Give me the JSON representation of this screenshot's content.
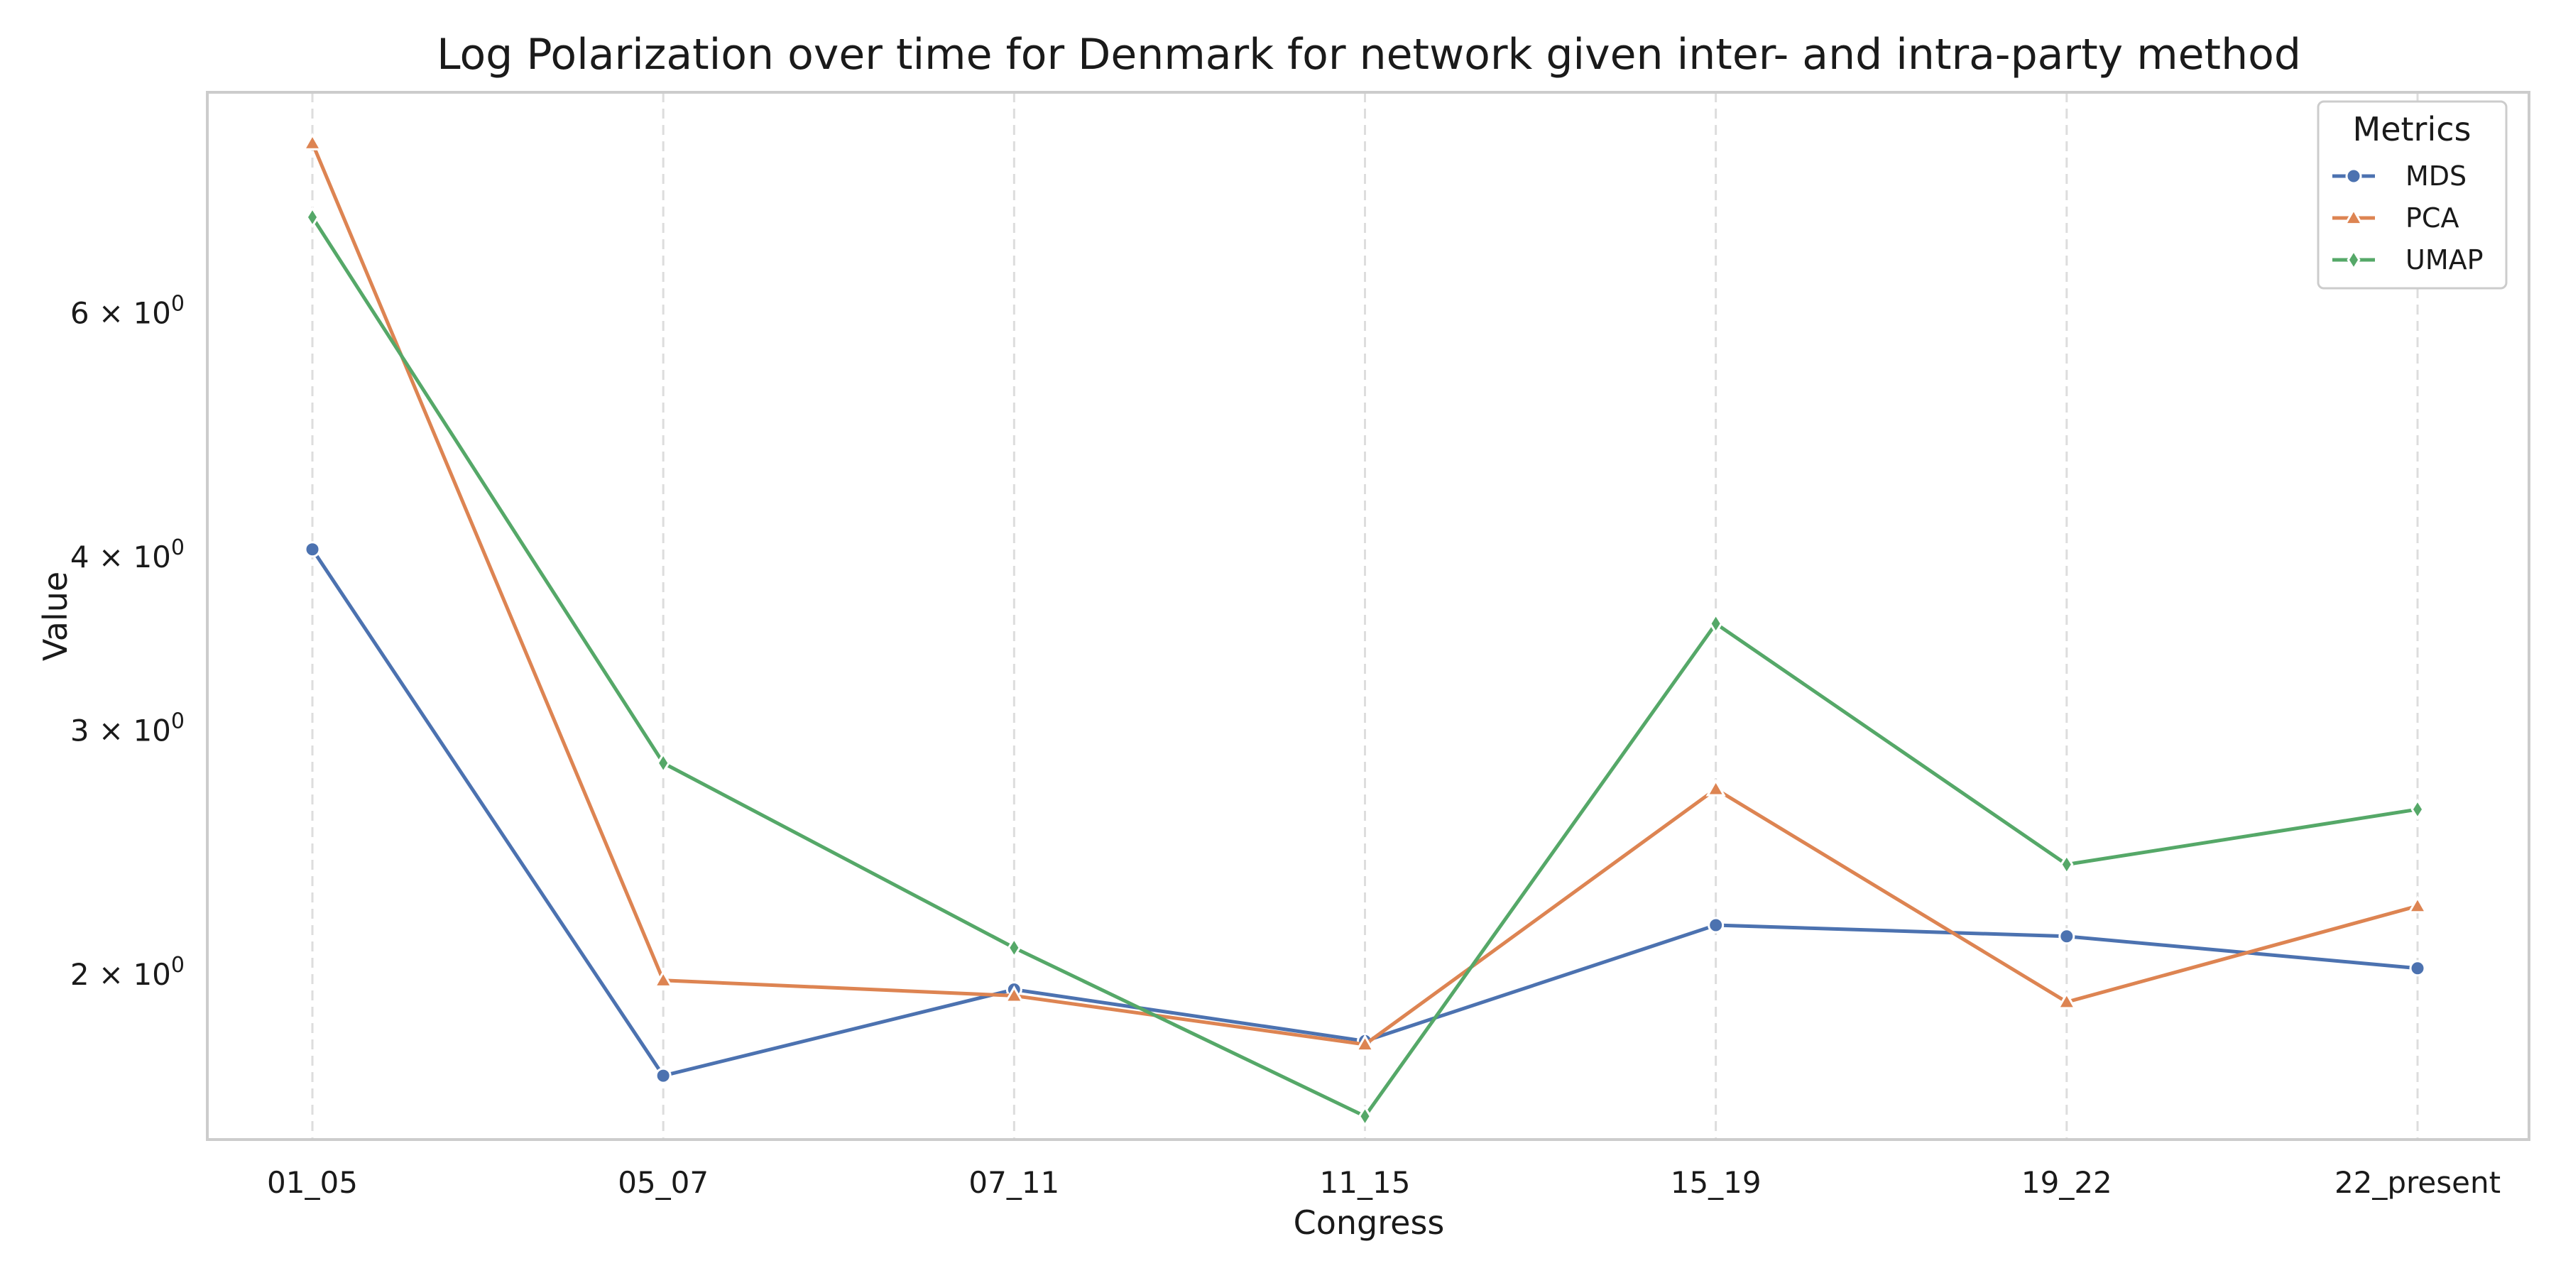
{
  "chart_data": {
    "type": "line",
    "title": "Log Polarization over time for Denmark for network given inter- and intra-party method",
    "xlabel": "Congress",
    "ylabel": "Value",
    "y_scale": "log",
    "grid": "vertical dashed",
    "categories": [
      "01_05",
      "05_07",
      "07_11",
      "11_15",
      "15_19",
      "19_22",
      "22_present"
    ],
    "yticks": [
      {
        "value": 2,
        "base": "2 × 10",
        "exp": "0"
      },
      {
        "value": 3,
        "base": "3 × 10",
        "exp": "0"
      },
      {
        "value": 4,
        "base": "4 × 10",
        "exp": "0"
      },
      {
        "value": 6,
        "base": "6 × 10",
        "exp": "0"
      }
    ],
    "ylim": [
      1.52,
      8.65
    ],
    "series": [
      {
        "name": "MDS",
        "color": "#4c72b0",
        "marker": "circle",
        "values": [
          4.05,
          1.69,
          1.95,
          1.79,
          2.17,
          2.13,
          2.02
        ]
      },
      {
        "name": "PCA",
        "color": "#dd8452",
        "marker": "triangle",
        "values": [
          7.95,
          1.98,
          1.93,
          1.78,
          2.72,
          1.91,
          2.24
        ]
      },
      {
        "name": "UMAP",
        "color": "#55a868",
        "marker": "diamond",
        "values": [
          7.03,
          2.84,
          2.09,
          1.58,
          3.58,
          2.4,
          2.63
        ]
      }
    ],
    "legend": {
      "title": "Metrics",
      "position": "top-right"
    }
  }
}
